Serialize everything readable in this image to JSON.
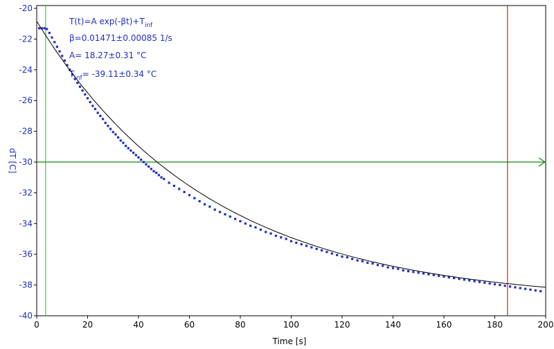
{
  "colors": {
    "axis_text": "#1f2fbf",
    "data_points": "#1f2fbf",
    "fit_line": "#000000",
    "cursor_left": "#33cc33",
    "cursor_right": "#cc2222",
    "hline": "#118811"
  },
  "chart_data": {
    "type": "scatter",
    "xlabel": "Time [s]",
    "ylabel": "dT [C]",
    "xlim": [
      0,
      200
    ],
    "ylim": [
      -40,
      -20
    ],
    "xticks": [
      "0",
      "20",
      "40",
      "60",
      "80",
      "100",
      "120",
      "140",
      "160",
      "180",
      "200"
    ],
    "yticks": [
      "-20",
      "-22",
      "-24",
      "-26",
      "-28",
      "-30",
      "-32",
      "-34",
      "-36",
      "-38",
      "-40"
    ],
    "grid": false,
    "fit": {
      "equation_prefix": "T(t)=A exp(-βt)+T",
      "equation_sub": "inf",
      "beta_line": "β=0.01471±0.00085 1/s",
      "A_line": "A= 18.27±0.31 °C",
      "tinf_prefix": "T",
      "tinf_sub": "inf",
      "tinf_rest": "= -39.11±0.34 °C",
      "A": 18.27,
      "beta": 0.01471,
      "T_inf": -39.11
    },
    "cursors": {
      "left_x": 3.5,
      "right_x": 185,
      "hline_y": -30
    },
    "series": [
      {
        "points": [
          [
            1,
            -21.3
          ],
          [
            2,
            -21.3
          ],
          [
            3,
            -21.3
          ],
          [
            4,
            -21.35
          ],
          [
            5,
            -21.6
          ],
          [
            6,
            -21.9
          ],
          [
            7,
            -22.2
          ],
          [
            8,
            -22.5
          ],
          [
            9,
            -22.8
          ],
          [
            10,
            -23.1
          ],
          [
            11,
            -23.4
          ],
          [
            12,
            -23.7
          ],
          [
            13,
            -24.0
          ],
          [
            14,
            -24.3
          ],
          [
            15,
            -24.6
          ],
          [
            16,
            -24.85
          ],
          [
            17,
            -25.1
          ],
          [
            18,
            -25.35
          ],
          [
            19,
            -25.6
          ],
          [
            20,
            -25.85
          ],
          [
            21,
            -26.1
          ],
          [
            22,
            -26.35
          ],
          [
            23,
            -26.55
          ],
          [
            24,
            -26.8
          ],
          [
            25,
            -27.0
          ],
          [
            26,
            -27.2
          ],
          [
            27,
            -27.45
          ],
          [
            28,
            -27.65
          ],
          [
            29,
            -27.85
          ],
          [
            30,
            -28.05
          ],
          [
            31,
            -28.2
          ],
          [
            32,
            -28.4
          ],
          [
            33,
            -28.6
          ],
          [
            34,
            -28.75
          ],
          [
            35,
            -28.95
          ],
          [
            36,
            -29.1
          ],
          [
            37,
            -29.25
          ],
          [
            38,
            -29.4
          ],
          [
            39,
            -29.55
          ],
          [
            40,
            -29.7
          ],
          [
            41,
            -29.85
          ],
          [
            42,
            -30.0
          ],
          [
            43,
            -30.15
          ],
          [
            44,
            -30.3
          ],
          [
            45,
            -30.45
          ],
          [
            46,
            -30.6
          ],
          [
            47,
            -30.7
          ],
          [
            48,
            -30.85
          ],
          [
            49,
            -31.0
          ],
          [
            50,
            -31.1
          ],
          [
            52,
            -31.35
          ],
          [
            54,
            -31.55
          ],
          [
            56,
            -31.75
          ],
          [
            58,
            -31.95
          ],
          [
            60,
            -32.15
          ],
          [
            62,
            -32.35
          ],
          [
            64,
            -32.55
          ],
          [
            66,
            -32.75
          ],
          [
            68,
            -32.9
          ],
          [
            70,
            -33.1
          ],
          [
            72,
            -33.25
          ],
          [
            74,
            -33.4
          ],
          [
            76,
            -33.55
          ],
          [
            78,
            -33.7
          ],
          [
            80,
            -33.85
          ],
          [
            82,
            -34.0
          ],
          [
            84,
            -34.15
          ],
          [
            86,
            -34.25
          ],
          [
            88,
            -34.4
          ],
          [
            90,
            -34.55
          ],
          [
            92,
            -34.65
          ],
          [
            94,
            -34.8
          ],
          [
            96,
            -34.9
          ],
          [
            98,
            -35.0
          ],
          [
            100,
            -35.15
          ],
          [
            102,
            -35.25
          ],
          [
            104,
            -35.35
          ],
          [
            106,
            -35.45
          ],
          [
            108,
            -35.55
          ],
          [
            110,
            -35.65
          ],
          [
            112,
            -35.75
          ],
          [
            114,
            -35.85
          ],
          [
            116,
            -35.95
          ],
          [
            118,
            -36.05
          ],
          [
            120,
            -36.15
          ],
          [
            122,
            -36.2
          ],
          [
            124,
            -36.3
          ],
          [
            126,
            -36.4
          ],
          [
            128,
            -36.45
          ],
          [
            130,
            -36.55
          ],
          [
            132,
            -36.6
          ],
          [
            134,
            -36.7
          ],
          [
            136,
            -36.75
          ],
          [
            138,
            -36.85
          ],
          [
            140,
            -36.9
          ],
          [
            142,
            -36.95
          ],
          [
            144,
            -37.05
          ],
          [
            146,
            -37.1
          ],
          [
            148,
            -37.15
          ],
          [
            150,
            -37.2
          ],
          [
            152,
            -37.25
          ],
          [
            154,
            -37.3
          ],
          [
            156,
            -37.35
          ],
          [
            158,
            -37.4
          ],
          [
            160,
            -37.45
          ],
          [
            162,
            -37.5
          ],
          [
            164,
            -37.55
          ],
          [
            166,
            -37.6
          ],
          [
            168,
            -37.65
          ],
          [
            170,
            -37.7
          ],
          [
            172,
            -37.75
          ],
          [
            174,
            -37.8
          ],
          [
            176,
            -37.85
          ],
          [
            178,
            -37.9
          ],
          [
            180,
            -37.95
          ],
          [
            182,
            -38.0
          ],
          [
            184,
            -38.05
          ],
          [
            186,
            -38.1
          ],
          [
            188,
            -38.15
          ],
          [
            190,
            -38.2
          ],
          [
            192,
            -38.25
          ],
          [
            194,
            -38.3
          ],
          [
            196,
            -38.35
          ],
          [
            198,
            -38.4
          ]
        ]
      }
    ]
  }
}
